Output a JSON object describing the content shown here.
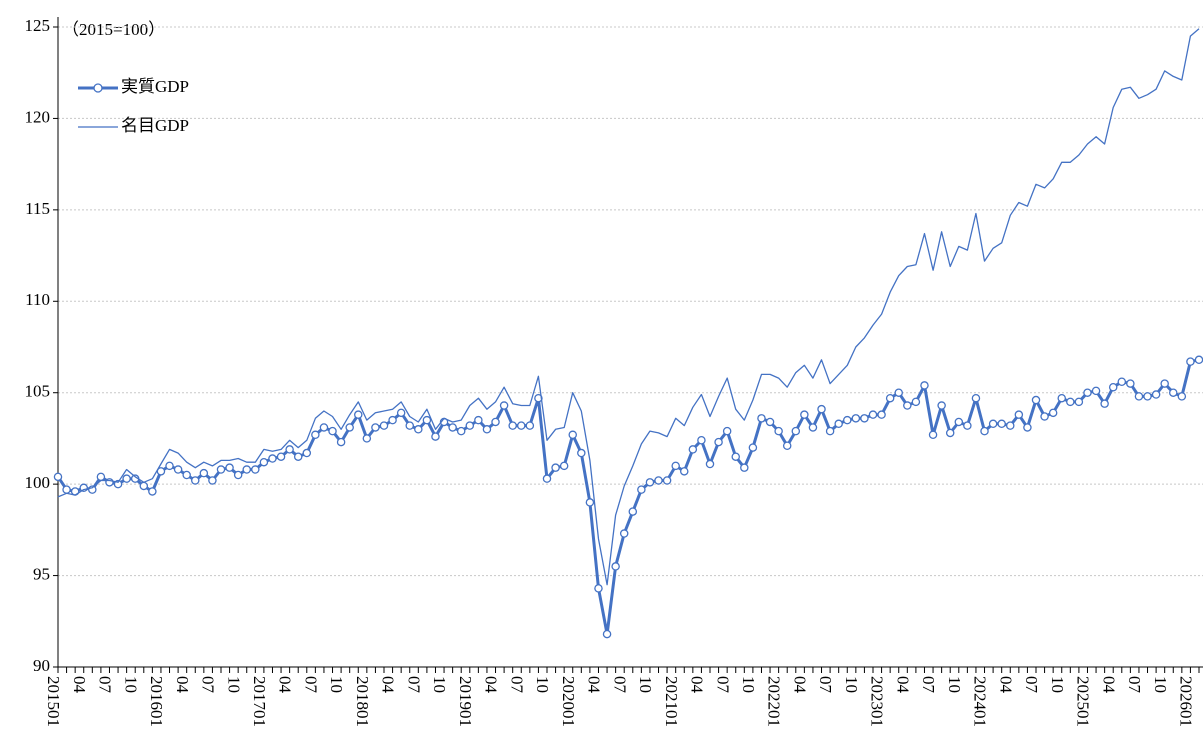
{
  "chart_data": {
    "type": "line",
    "note": "（2015=100）",
    "categories": [
      "201501",
      null,
      null,
      "04",
      null,
      null,
      "07",
      null,
      null,
      "10",
      null,
      null,
      "201601",
      null,
      null,
      "04",
      null,
      null,
      "07",
      null,
      null,
      "10",
      null,
      null,
      "201701",
      null,
      null,
      "04",
      null,
      null,
      "07",
      null,
      null,
      "10",
      null,
      null,
      "201801",
      null,
      null,
      "04",
      null,
      null,
      "07",
      null,
      null,
      "10",
      null,
      null,
      "201901",
      null,
      null,
      "04",
      null,
      null,
      "07",
      null,
      null,
      "10",
      null,
      null,
      "202001",
      null,
      null,
      "04",
      null,
      null,
      "07",
      null,
      null,
      "10",
      null,
      null,
      "202101",
      null,
      null,
      "04",
      null,
      null,
      "07",
      null,
      null,
      "10",
      null,
      null,
      "202201",
      null,
      null,
      "04",
      null,
      null,
      "07",
      null,
      null,
      "10",
      null,
      null,
      "202301",
      null,
      null,
      "04",
      null,
      null,
      "07",
      null,
      null,
      "10",
      null,
      null,
      "202401",
      null,
      null,
      "04",
      null,
      null,
      "07",
      null,
      null,
      "10",
      null,
      null,
      "202501",
      null,
      null,
      "04",
      null,
      null,
      "07",
      null,
      null,
      "10",
      null,
      null,
      "202601",
      null
    ],
    "series": [
      {
        "name": "実質GDP",
        "color": "#4472c4",
        "markers": true,
        "values": [
          100.4,
          99.7,
          99.6,
          99.8,
          99.7,
          100.4,
          100.1,
          100.0,
          100.3,
          100.3,
          99.9,
          99.6,
          100.7,
          101.0,
          100.8,
          100.5,
          100.2,
          100.6,
          100.2,
          100.8,
          100.9,
          100.5,
          100.8,
          100.8,
          101.2,
          101.4,
          101.5,
          101.9,
          101.5,
          101.7,
          102.7,
          103.1,
          102.9,
          102.3,
          103.1,
          103.8,
          102.5,
          103.1,
          103.2,
          103.5,
          103.9,
          103.2,
          103.0,
          103.5,
          102.6,
          103.4,
          103.1,
          102.9,
          103.2,
          103.5,
          103.0,
          103.4,
          104.3,
          103.2,
          103.2,
          103.2,
          104.7,
          100.3,
          100.9,
          101.0,
          102.7,
          101.7,
          99.0,
          94.3,
          91.8,
          95.5,
          97.3,
          98.5,
          99.7,
          100.1,
          100.2,
          100.2,
          101.0,
          100.7,
          101.9,
          102.4,
          101.1,
          102.3,
          102.9,
          101.5,
          100.9,
          102.0,
          103.6,
          103.4,
          102.9,
          102.1,
          102.9,
          103.8,
          103.1,
          104.1,
          102.9,
          103.3,
          103.5,
          103.6,
          103.6,
          103.8,
          103.8,
          104.7,
          105.0,
          104.3,
          104.5,
          105.4,
          102.7,
          104.3,
          102.8,
          103.4,
          103.2,
          104.7,
          102.9,
          103.3,
          103.3,
          103.2,
          103.8,
          103.1,
          104.6,
          103.7,
          103.9,
          104.7,
          104.5,
          104.5,
          105.0,
          105.1,
          104.4,
          105.3,
          105.6,
          105.5,
          104.8,
          104.8,
          104.9,
          105.5,
          105.0,
          104.8,
          106.7,
          106.8
        ]
      },
      {
        "name": "名目GDP",
        "color": "#4472c4",
        "markers": false,
        "values": [
          99.3,
          99.5,
          99.4,
          99.7,
          99.8,
          100.2,
          100.2,
          100.1,
          100.8,
          100.4,
          100.1,
          100.3,
          101.1,
          101.9,
          101.7,
          101.2,
          100.9,
          101.2,
          101.0,
          101.3,
          101.3,
          101.4,
          101.2,
          101.2,
          101.9,
          101.8,
          101.9,
          102.4,
          102.0,
          102.4,
          103.6,
          104.0,
          103.7,
          103.0,
          103.8,
          104.5,
          103.5,
          103.9,
          104.0,
          104.1,
          104.5,
          103.7,
          103.4,
          104.1,
          103.0,
          103.6,
          103.4,
          103.5,
          104.3,
          104.7,
          104.1,
          104.5,
          105.3,
          104.4,
          104.3,
          104.3,
          105.9,
          102.4,
          103.0,
          103.1,
          105.0,
          104.0,
          101.3,
          97.0,
          94.5,
          98.3,
          99.9,
          101.0,
          102.2,
          102.9,
          102.8,
          102.6,
          103.6,
          103.2,
          104.2,
          104.9,
          103.7,
          104.8,
          105.8,
          104.1,
          103.5,
          104.6,
          106.0,
          106.0,
          105.8,
          105.3,
          106.1,
          106.5,
          105.8,
          106.8,
          105.5,
          106.0,
          106.5,
          107.5,
          108.0,
          108.7,
          109.3,
          110.5,
          111.4,
          111.9,
          112.0,
          113.7,
          111.7,
          113.8,
          111.9,
          113.0,
          112.8,
          114.8,
          112.2,
          112.9,
          113.2,
          114.7,
          115.4,
          115.2,
          116.4,
          116.2,
          116.7,
          117.6,
          117.6,
          118.0,
          118.6,
          119.0,
          118.6,
          120.6,
          121.6,
          121.7,
          121.1,
          121.3,
          121.6,
          122.6,
          122.3,
          122.1,
          124.5,
          124.9
        ]
      }
    ],
    "ylim": [
      90,
      125
    ],
    "yticks": [
      90,
      95,
      100,
      105,
      110,
      115,
      120,
      125
    ],
    "grid": true
  }
}
